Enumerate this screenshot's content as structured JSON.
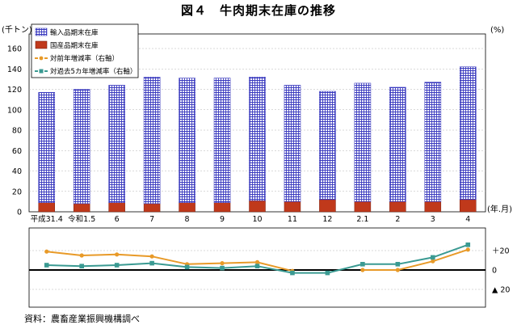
{
  "title": "図４　牛肉期末在庫の推移",
  "source": "資料：農畜産業振興機構調べ",
  "chart_data": {
    "type": "bar",
    "left_unit": "(千トン)",
    "right_unit": "(%)",
    "x_unit": "(年.月)",
    "categories": [
      "平成31.4",
      "令和1.5",
      "6",
      "7",
      "8",
      "9",
      "10",
      "11",
      "12",
      "2.1",
      "2",
      "3",
      "4"
    ],
    "ylim": [
      0,
      160
    ],
    "yticks": [
      "0",
      "20",
      "40",
      "60",
      "80",
      "100",
      "120",
      "140",
      "160"
    ],
    "right_ticks": [
      "＋20",
      "0",
      "▲ 20"
    ],
    "right_ylim": [
      -20,
      20
    ],
    "series": [
      {
        "name": "輸入品期末在庫",
        "values": [
          108,
          112,
          115,
          124,
          122,
          122,
          121,
          114,
          106,
          116,
          112,
          117,
          130
        ],
        "color": "#3b3bbf"
      },
      {
        "name": "国産品期末在庫",
        "values": [
          9,
          8,
          9,
          8,
          9,
          9,
          11,
          10,
          12,
          10,
          10,
          10,
          12
        ],
        "color": "#c0391b"
      },
      {
        "name": "対前年増減率（右軸）",
        "values": [
          19,
          15,
          16,
          14,
          6,
          7,
          8,
          -1,
          null,
          0,
          0,
          9,
          21
        ],
        "color": "#e89a28"
      },
      {
        "name": "対過去5カ年増減率（右軸）",
        "values": [
          5,
          4,
          5,
          7,
          3,
          2,
          4,
          -3,
          -3,
          6,
          6,
          13,
          26
        ],
        "color": "#3a9a92"
      }
    ]
  }
}
